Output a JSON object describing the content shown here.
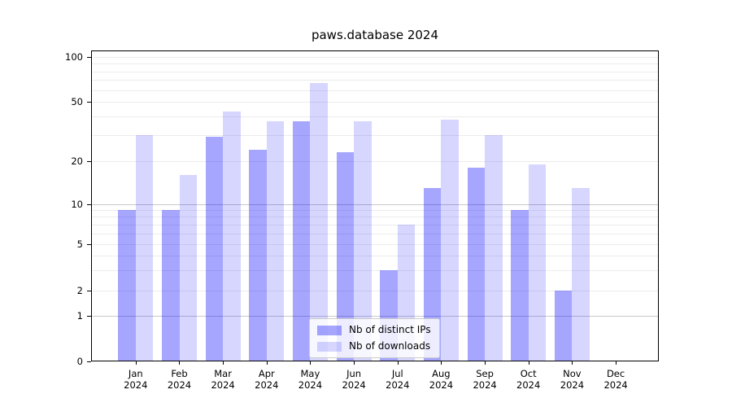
{
  "figure": {
    "title": "paws.database 2024",
    "background": "#ffffff"
  },
  "chart_data": {
    "type": "bar",
    "title": "paws.database 2024",
    "categories": [
      "Jan",
      "Feb",
      "Mar",
      "Apr",
      "May",
      "Jun",
      "Jul",
      "Aug",
      "Sep",
      "Oct",
      "Nov",
      "Dec"
    ],
    "x_sublabel_year": "2024",
    "series": [
      {
        "name": "Nb of distinct IPs",
        "color": "rgba(0,0,255,0.35)",
        "values": [
          9,
          9,
          29,
          24,
          37,
          23,
          3,
          13,
          18,
          9,
          2,
          0
        ]
      },
      {
        "name": "Nb of downloads",
        "color": "rgba(0,0,255,0.16)",
        "values": [
          30,
          16,
          43,
          37,
          67,
          37,
          7,
          38,
          30,
          19,
          13,
          0
        ]
      }
    ],
    "y_axis": {
      "scale": "log-like with linear segment to 0",
      "major_tick_labels": [
        "100",
        "50",
        "20",
        "10",
        "5",
        "2",
        "1",
        "0"
      ],
      "major_tick_values": [
        100,
        50,
        20,
        10,
        5,
        2,
        1,
        0
      ],
      "minor_gridline_values": [
        2,
        3,
        4,
        5,
        6,
        7,
        8,
        9,
        20,
        30,
        40,
        50,
        60,
        70,
        80,
        90,
        100
      ],
      "emphasis_gridline_values": [
        1,
        10
      ],
      "range": [
        0,
        110
      ]
    },
    "x_axis": {
      "label": "",
      "tick_count": 12
    },
    "legend": {
      "position": "lower center",
      "entries": [
        "Nb of distinct IPs",
        "Nb of downloads"
      ]
    },
    "grid": true,
    "xlabel": "",
    "ylabel": ""
  },
  "colors": {
    "grid_minor": "#ececec",
    "grid_major": "#c8c8c8",
    "axis": "#000000",
    "text": "#000000",
    "legend_border": "#cccccc",
    "legend_background": "rgba(255,255,255,0.8)"
  }
}
